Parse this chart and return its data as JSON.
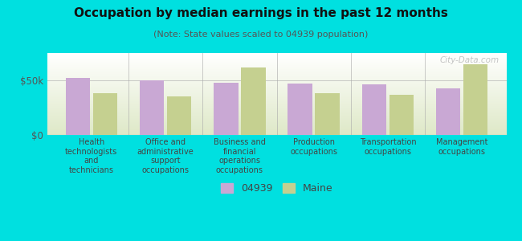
{
  "title": "Occupation by median earnings in the past 12 months",
  "subtitle": "(Note: State values scaled to 04939 population)",
  "categories": [
    "Health\ntechnologists\nand\ntechnicians",
    "Office and\nadministrative\nsupport\noccupations",
    "Business and\nfinancial\noperations\noccupations",
    "Production\noccupations",
    "Transportation\noccupations",
    "Management\noccupations"
  ],
  "values_04939": [
    52000,
    50000,
    48000,
    47000,
    46000,
    43000
  ],
  "values_maine": [
    38000,
    35000,
    62000,
    38000,
    37000,
    65000
  ],
  "color_04939": "#c9a8d4",
  "color_maine": "#c5d090",
  "background_outer": "#00e0e0",
  "yticks": [
    0,
    50000
  ],
  "ytick_labels": [
    "$0",
    "$50k"
  ],
  "ylim": [
    0,
    75000
  ],
  "legend_label_04939": "04939",
  "legend_label_maine": "Maine",
  "watermark": "City-Data.com"
}
